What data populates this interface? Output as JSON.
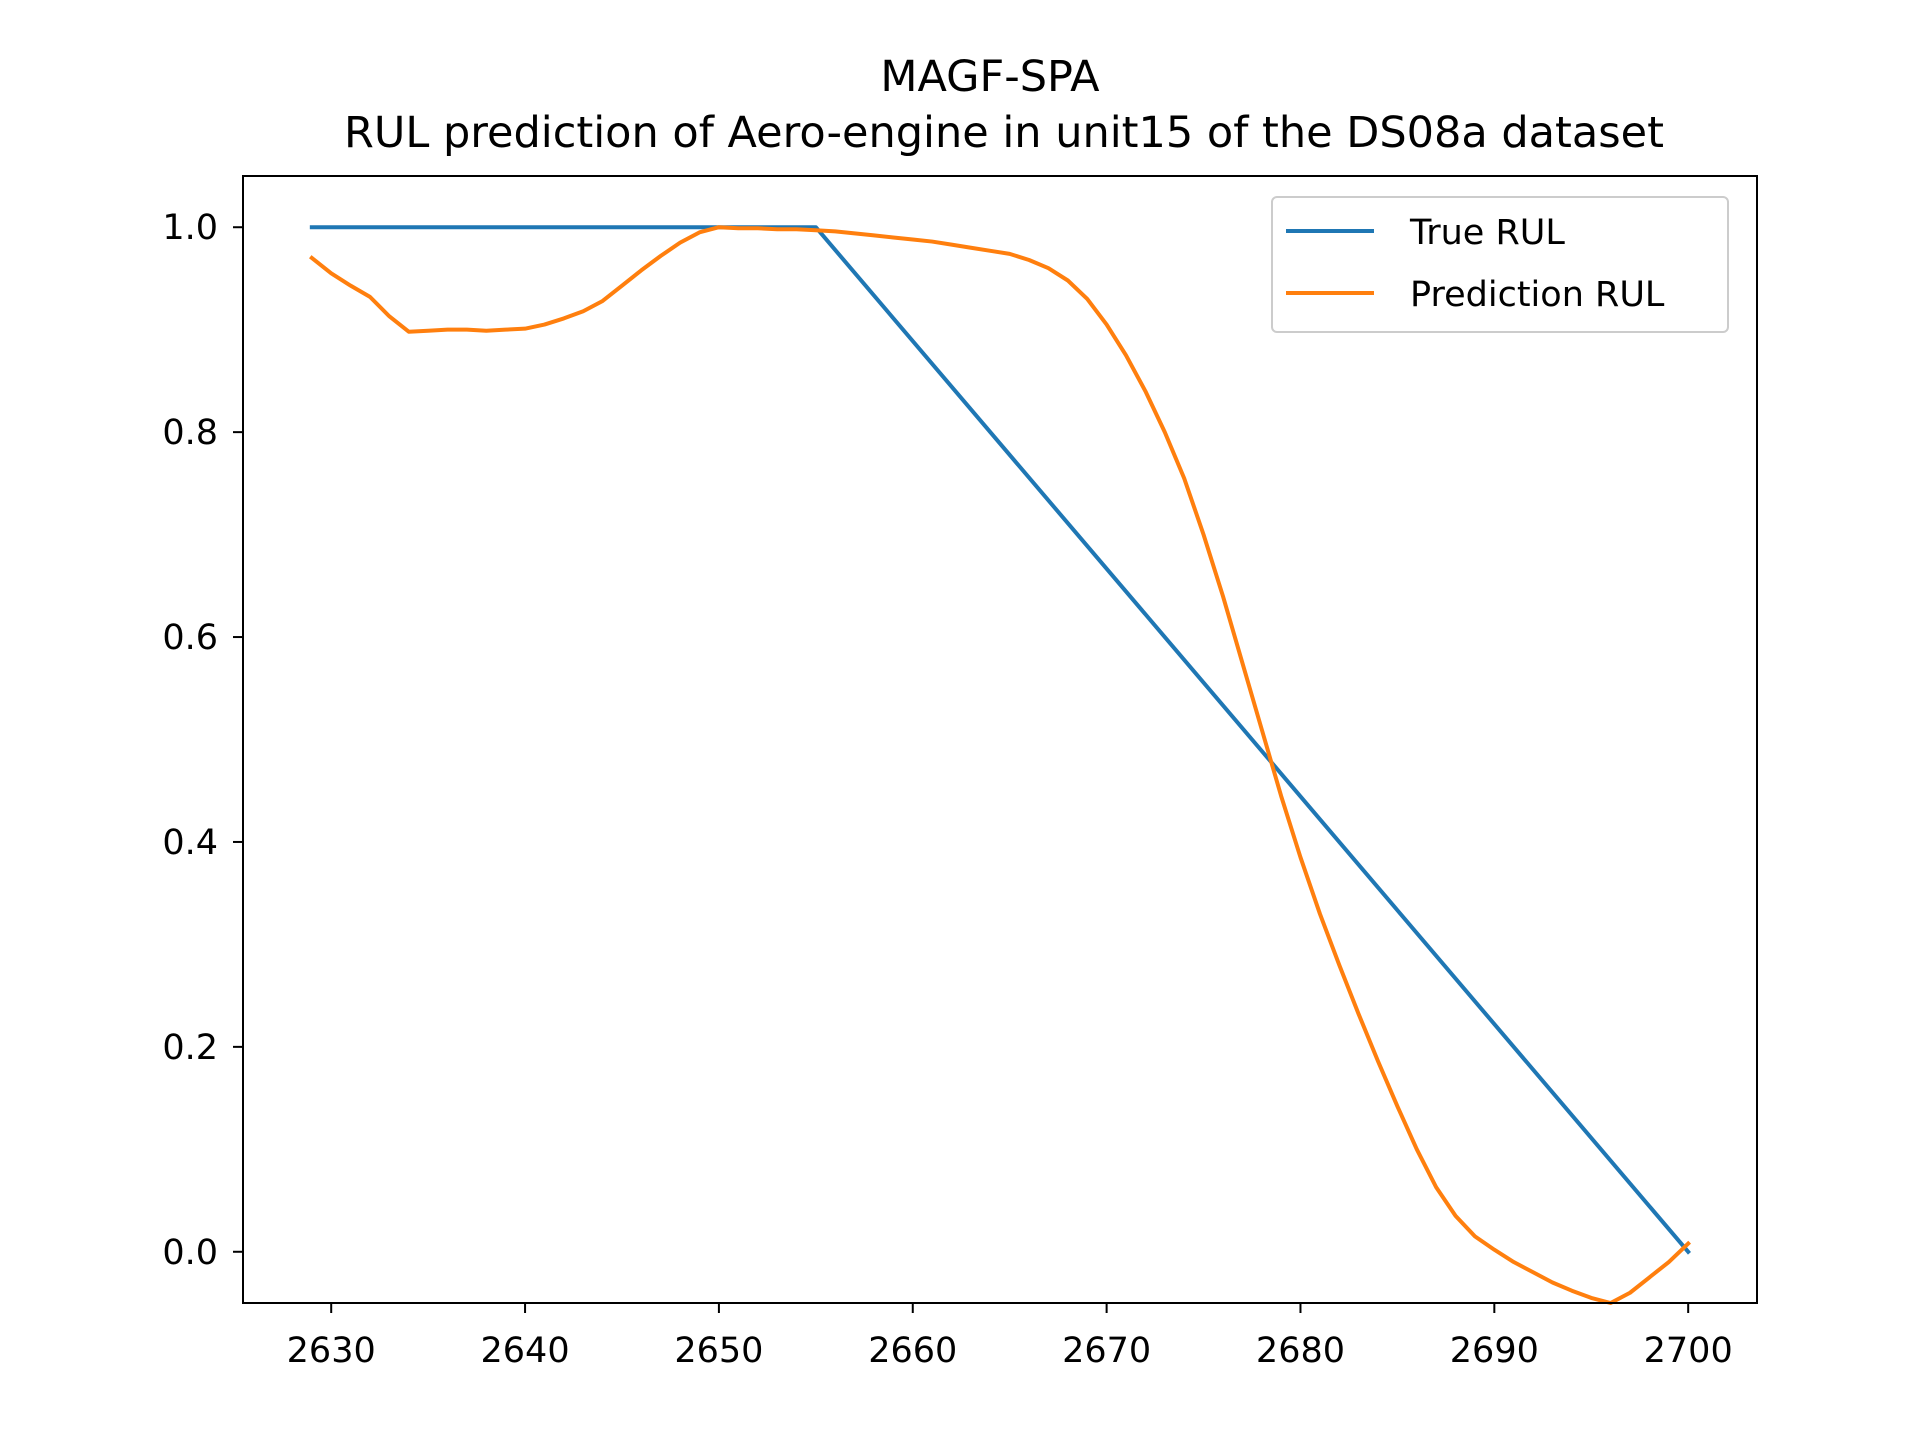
{
  "chart_data": {
    "type": "line",
    "title": "MAGF-SPA",
    "subtitle": "RUL prediction of Aero-engine in unit15 of the DS08a dataset",
    "xlabel": "",
    "ylabel": "",
    "xlim": [
      2625.45,
      2703.55
    ],
    "ylim": [
      -0.05,
      1.05
    ],
    "xticks": [
      2630,
      2640,
      2650,
      2660,
      2670,
      2680,
      2690,
      2700
    ],
    "yticks": [
      0.0,
      0.2,
      0.4,
      0.6,
      0.8,
      1.0
    ],
    "ytick_labels": [
      "0.0",
      "0.2",
      "0.4",
      "0.6",
      "0.8",
      "1.0"
    ],
    "grid": false,
    "legend_position": "top-right",
    "series": [
      {
        "name": "True RUL",
        "color": "#1f77b4",
        "points": [
          [
            2629,
            1.0
          ],
          [
            2655,
            1.0
          ],
          [
            2700,
            0.0
          ]
        ]
      },
      {
        "name": "Prediction RUL",
        "color": "#ff7f0e",
        "points": [
          [
            2629,
            0.97
          ],
          [
            2630,
            0.955
          ],
          [
            2631,
            0.943
          ],
          [
            2632,
            0.932
          ],
          [
            2633,
            0.913
          ],
          [
            2634,
            0.898
          ],
          [
            2635,
            0.899
          ],
          [
            2636,
            0.9
          ],
          [
            2637,
            0.9
          ],
          [
            2638,
            0.899
          ],
          [
            2639,
            0.9
          ],
          [
            2640,
            0.901
          ],
          [
            2641,
            0.905
          ],
          [
            2642,
            0.911
          ],
          [
            2643,
            0.918
          ],
          [
            2644,
            0.928
          ],
          [
            2645,
            0.943
          ],
          [
            2646,
            0.958
          ],
          [
            2647,
            0.972
          ],
          [
            2648,
            0.985
          ],
          [
            2649,
            0.995
          ],
          [
            2650,
            1.0
          ],
          [
            2651,
            0.999
          ],
          [
            2652,
            0.999
          ],
          [
            2653,
            0.998
          ],
          [
            2654,
            0.998
          ],
          [
            2655,
            0.997
          ],
          [
            2656,
            0.996
          ],
          [
            2657,
            0.994
          ],
          [
            2658,
            0.992
          ],
          [
            2659,
            0.99
          ],
          [
            2660,
            0.988
          ],
          [
            2661,
            0.986
          ],
          [
            2662,
            0.983
          ],
          [
            2663,
            0.98
          ],
          [
            2664,
            0.977
          ],
          [
            2665,
            0.974
          ],
          [
            2666,
            0.968
          ],
          [
            2667,
            0.96
          ],
          [
            2668,
            0.948
          ],
          [
            2669,
            0.93
          ],
          [
            2670,
            0.905
          ],
          [
            2671,
            0.875
          ],
          [
            2672,
            0.84
          ],
          [
            2673,
            0.8
          ],
          [
            2674,
            0.755
          ],
          [
            2675,
            0.7
          ],
          [
            2676,
            0.64
          ],
          [
            2677,
            0.575
          ],
          [
            2678,
            0.51
          ],
          [
            2679,
            0.445
          ],
          [
            2680,
            0.385
          ],
          [
            2681,
            0.33
          ],
          [
            2682,
            0.28
          ],
          [
            2683,
            0.232
          ],
          [
            2684,
            0.186
          ],
          [
            2685,
            0.142
          ],
          [
            2686,
            0.1
          ],
          [
            2687,
            0.063
          ],
          [
            2688,
            0.035
          ],
          [
            2689,
            0.015
          ],
          [
            2690,
            0.002
          ],
          [
            2691,
            -0.01
          ],
          [
            2692,
            -0.02
          ],
          [
            2693,
            -0.03
          ],
          [
            2694,
            -0.038
          ],
          [
            2695,
            -0.045
          ],
          [
            2696,
            -0.05
          ],
          [
            2697,
            -0.04
          ],
          [
            2698,
            -0.025
          ],
          [
            2699,
            -0.01
          ],
          [
            2700,
            0.008
          ]
        ]
      }
    ]
  }
}
